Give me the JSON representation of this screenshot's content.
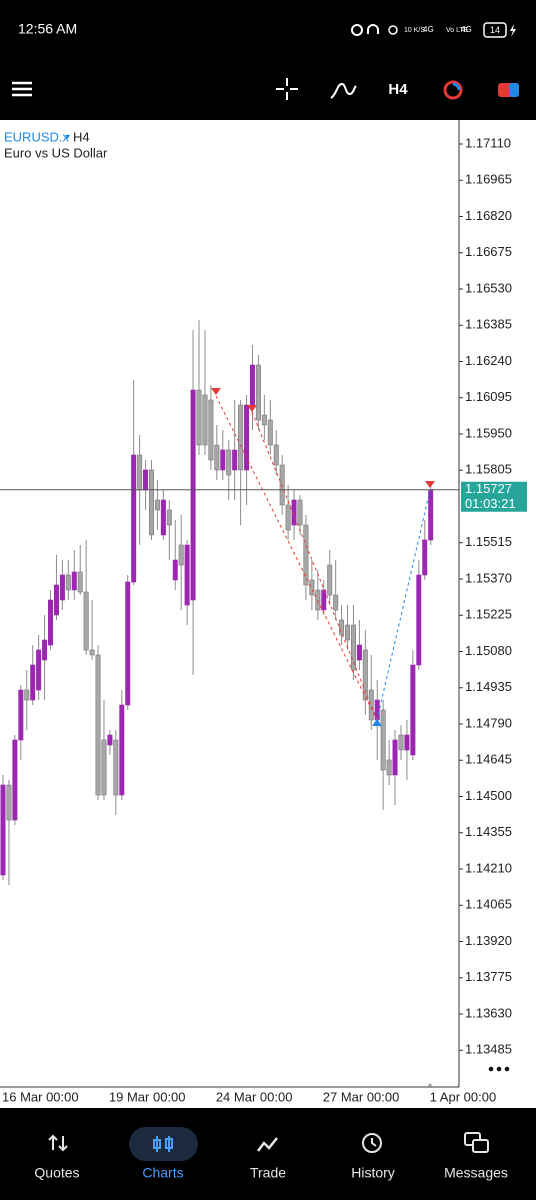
{
  "status_bar": {
    "time": "12:56 AM",
    "speed": "10 K/S",
    "network": "4G",
    "volte": "Vo LTE",
    "network2": "4G",
    "battery": "14"
  },
  "toolbar": {
    "timeframe": "H4"
  },
  "chart_header": {
    "symbol": "EURUSD.x",
    "timeframe": "H4",
    "description": "Euro vs US Dollar"
  },
  "chart_data": {
    "type": "candlestick",
    "up_color": "#9c27b0",
    "down_color": "#a6a6a6",
    "categories": [
      "16 Mar 00:00",
      null,
      null,
      null,
      null,
      null,
      null,
      null,
      null,
      null,
      null,
      null,
      null,
      null,
      null,
      null,
      null,
      null,
      "19 Mar 00:00",
      null,
      null,
      null,
      null,
      null,
      null,
      null,
      null,
      null,
      null,
      null,
      null,
      null,
      null,
      null,
      null,
      null,
      "24 Mar 00:00",
      null,
      null,
      null,
      null,
      null,
      null,
      null,
      null,
      null,
      null,
      null,
      null,
      null,
      null,
      null,
      null,
      null,
      "27 Mar 00:00",
      null,
      null,
      null,
      null,
      null,
      null,
      null,
      null,
      null,
      null,
      null,
      null,
      null,
      null,
      null,
      null,
      null,
      "1 Apr 00:00"
    ],
    "open": [
      1.14186,
      1.14546,
      1.14406,
      1.14726,
      1.14926,
      1.14886,
      1.14926,
      1.15046,
      1.15106,
      1.15226,
      1.15286,
      1.15386,
      1.15326,
      1.15398,
      1.15318,
      1.15086,
      1.15066,
      1.14726,
      1.14706,
      1.14726,
      1.14506,
      1.14866,
      1.15358,
      1.15866,
      1.15726,
      1.15806,
      1.15686,
      1.15546,
      1.15646,
      1.15366,
      1.15506,
      1.15266,
      1.15286,
      1.16126,
      1.16106,
      1.16086,
      1.15906,
      1.15806,
      1.15886,
      1.15806,
      1.16066,
      1.15806,
      1.16066,
      1.16226,
      1.16026,
      1.16006,
      1.15906,
      1.15826,
      1.15666,
      1.15586,
      1.15686,
      1.15586,
      1.15366,
      1.15326,
      1.15246,
      1.15426,
      1.15306,
      1.15206,
      1.15186,
      1.15186,
      1.15046,
      1.15086,
      1.14926,
      1.14806,
      1.14846,
      1.14646,
      1.14586,
      1.14746,
      1.14686,
      1.14666,
      1.15026,
      1.15386,
      1.15526
    ],
    "high": [
      1.14586,
      1.14566,
      1.14746,
      1.14946,
      1.15006,
      1.15106,
      1.15146,
      1.15226,
      1.15326,
      1.15466,
      1.15446,
      1.15446,
      1.15486,
      1.15506,
      1.15526,
      1.15286,
      1.15106,
      1.14886,
      1.14766,
      1.14766,
      1.14926,
      1.15386,
      1.16166,
      1.15946,
      1.15846,
      1.15846,
      1.15766,
      1.15726,
      1.15686,
      1.15606,
      1.15626,
      1.15526,
      1.16366,
      1.16406,
      1.16366,
      1.16146,
      1.15986,
      1.15966,
      1.15926,
      1.16086,
      1.16086,
      1.16106,
      1.16306,
      1.16266,
      1.16106,
      1.16086,
      1.15966,
      1.15866,
      1.15746,
      1.15726,
      1.15706,
      1.15626,
      1.15446,
      1.15406,
      1.15366,
      1.15486,
      1.15446,
      1.15266,
      1.15266,
      1.15266,
      1.15206,
      1.15166,
      1.15066,
      1.14966,
      1.14886,
      1.14726,
      1.14766,
      1.14786,
      1.14806,
      1.15086,
      1.15446,
      1.15606,
      1.15746
    ],
    "low": [
      1.14166,
      1.14146,
      1.14386,
      1.14646,
      1.14766,
      1.14866,
      1.14886,
      1.14886,
      1.15086,
      1.15206,
      1.15246,
      1.15286,
      1.15286,
      1.15306,
      1.15066,
      1.15046,
      1.14486,
      1.14486,
      1.14666,
      1.14426,
      1.14486,
      1.14846,
      1.15346,
      1.15506,
      1.15646,
      1.15526,
      1.15566,
      1.15526,
      1.15446,
      1.15326,
      1.15246,
      1.15186,
      1.14986,
      1.15866,
      1.15866,
      1.15806,
      1.15766,
      1.15766,
      1.15686,
      1.15686,
      1.15586,
      1.15666,
      1.15966,
      1.15966,
      1.15926,
      1.15866,
      1.15786,
      1.15626,
      1.15526,
      1.15526,
      1.15546,
      1.15286,
      1.15246,
      1.15206,
      1.15226,
      1.15266,
      1.15206,
      1.15106,
      1.15086,
      1.14966,
      1.15006,
      1.14826,
      1.14766,
      1.14646,
      1.14446,
      1.14546,
      1.14466,
      1.14646,
      1.14566,
      1.14646,
      1.15006,
      1.15366,
      1.15506
    ],
    "close": [
      1.14546,
      1.14406,
      1.14726,
      1.14926,
      1.14886,
      1.15026,
      1.15086,
      1.15126,
      1.15286,
      1.15346,
      1.15386,
      1.15326,
      1.15398,
      1.15318,
      1.15086,
      1.15066,
      1.14506,
      1.14506,
      1.14746,
      1.14506,
      1.14866,
      1.15358,
      1.15866,
      1.15726,
      1.15806,
      1.15546,
      1.15646,
      1.15686,
      1.15586,
      1.15446,
      1.15426,
      1.15506,
      1.16126,
      1.15906,
      1.15906,
      1.15846,
      1.15806,
      1.15886,
      1.15786,
      1.15886,
      1.15806,
      1.16066,
      1.16226,
      1.16006,
      1.15986,
      1.15906,
      1.15826,
      1.15666,
      1.15566,
      1.15686,
      1.15586,
      1.15346,
      1.15306,
      1.15246,
      1.15326,
      1.15306,
      1.15246,
      1.15146,
      1.15126,
      1.15006,
      1.15106,
      1.14886,
      1.14806,
      1.14886,
      1.14606,
      1.14586,
      1.14726,
      1.14686,
      1.14746,
      1.15026,
      1.15386,
      1.15526,
      1.15727
    ],
    "ylim": [
      1.13338,
      1.17206
    ],
    "yticks": [
      {
        "value": 1.1711,
        "label": "1.17110"
      },
      1.16965,
      {
        "value": 1.1682,
        "label": "1.16820"
      },
      1.16675,
      {
        "value": 1.1653,
        "label": "1.16530"
      },
      1.16385,
      {
        "value": 1.1624,
        "label": "1.16240"
      },
      1.16095,
      {
        "value": 1.1595,
        "label": "1.15950"
      },
      1.15805,
      1.15515,
      {
        "value": 1.1537,
        "label": "1.15370"
      },
      1.15225,
      {
        "value": 1.1508,
        "label": "1.15080"
      },
      1.14935,
      {
        "value": 1.1479,
        "label": "1.14790"
      },
      1.14645,
      {
        "value": 1.145,
        "label": "1.14500"
      },
      1.14355,
      {
        "value": 1.1421,
        "label": "1.14210"
      },
      1.14065,
      {
        "value": 1.1392,
        "label": "1.13920"
      },
      1.13775,
      {
        "value": 1.1363,
        "label": "1.13630"
      },
      1.13485
    ],
    "current_price": 1.15727,
    "countdown": "01:03:21"
  },
  "nav": [
    "Quotes",
    "Charts",
    "Trade",
    "History",
    "Messages"
  ]
}
